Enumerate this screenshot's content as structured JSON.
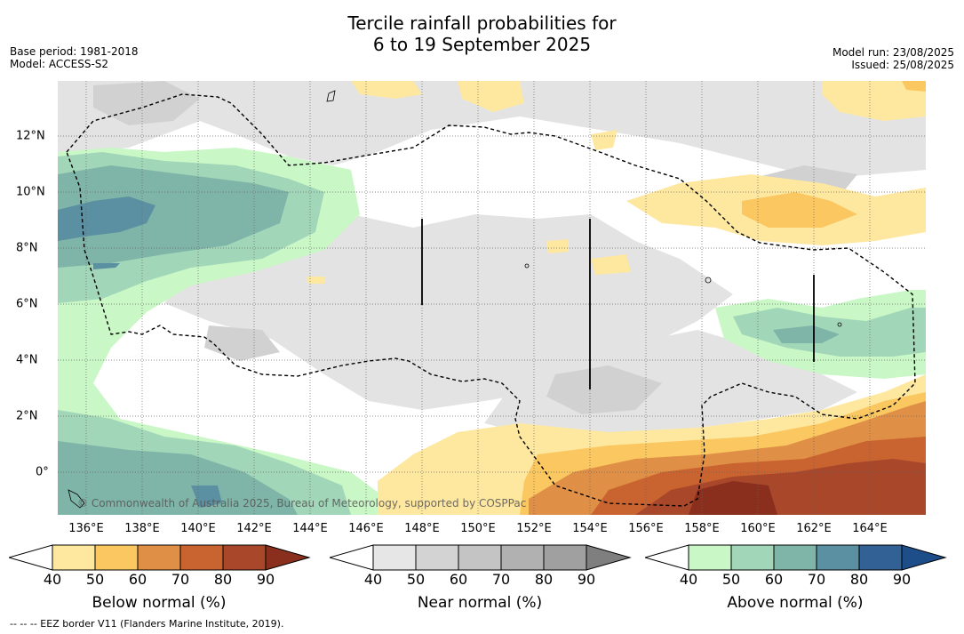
{
  "title": {
    "line1": "Tercile rainfall probabilities for",
    "line2": "6 to 19 September 2025"
  },
  "meta_left": {
    "base_period": "Base period: 1981-2018",
    "model": "Model: ACCESS-S2"
  },
  "meta_right": {
    "model_run": "Model run: 23/08/2025",
    "issued": "Issued: 25/08/2025"
  },
  "copyright": "© Commonwealth of Australia 2025, Bureau of Meteorology, supported by COSPPac",
  "lon_labels": [
    "136°E",
    "138°E",
    "140°E",
    "142°E",
    "144°E",
    "146°E",
    "148°E",
    "150°E",
    "152°E",
    "154°E",
    "156°E",
    "158°E",
    "160°E",
    "162°E",
    "164°E"
  ],
  "lat_labels": [
    "12°N",
    "10°N",
    "8°N",
    "6°N",
    "4°N",
    "2°N",
    "0°"
  ],
  "colorbars": {
    "ticks": [
      "40",
      "50",
      "60",
      "70",
      "80",
      "90"
    ],
    "below": {
      "label": "Below normal (%)",
      "colors": [
        "#ffffff",
        "#fee8a0",
        "#fbc761",
        "#e09046",
        "#c96431",
        "#a8472a",
        "#8a2e1d"
      ]
    },
    "near": {
      "label": "Near normal (%)",
      "colors": [
        "#ffffff",
        "#e6e6e6",
        "#d3d3d3",
        "#c4c4c4",
        "#b1b1b1",
        "#a0a0a0",
        "#7f7f7f"
      ]
    },
    "above": {
      "label": "Above normal (%)",
      "colors": [
        "#ffffff",
        "#c9f7c6",
        "#a2d6b8",
        "#7fb5a8",
        "#5a90a1",
        "#326195",
        "#1d4e8a"
      ]
    }
  },
  "footer": "--  --  -- EEZ border V11 (Flanders Marine Institute, 2019).",
  "colors": {
    "near40": "#e3e3e3",
    "near50": "#d1d1d1",
    "above40": "#c9f7c6",
    "above50": "#a2d6b8",
    "above60": "#7fb5a8",
    "above70": "#5a90a1",
    "below40": "#fee8a0",
    "below50": "#fbc761",
    "below60": "#e09046",
    "below70": "#c96431",
    "below80": "#a8472a",
    "below90": "#8a2e1d"
  }
}
